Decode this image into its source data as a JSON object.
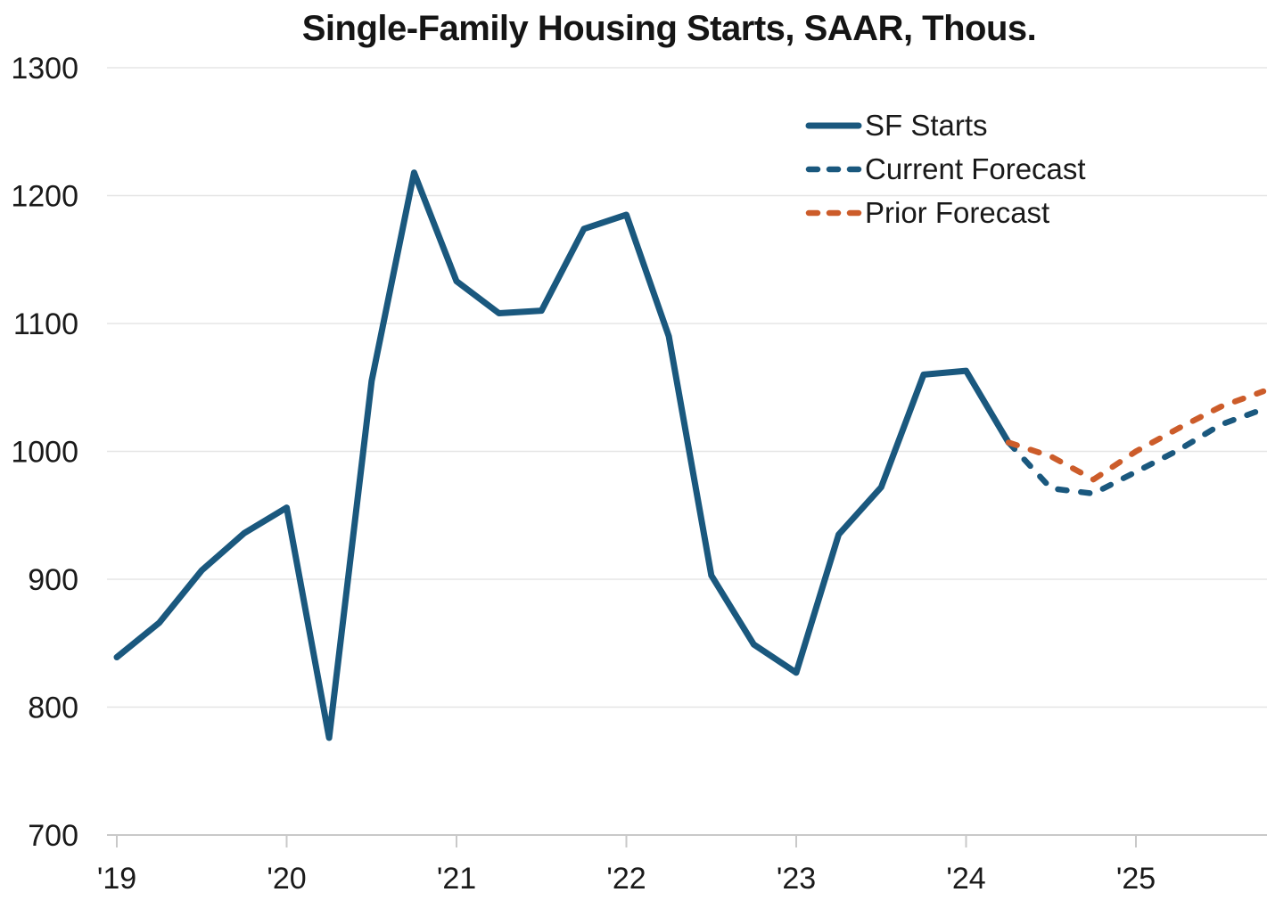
{
  "title": "Single-Family Housing Starts, SAAR, Thous.",
  "legend": {
    "items": [
      {
        "label": "SF Starts",
        "line_style": "solid",
        "color": "#1a587e"
      },
      {
        "label": "Current Forecast",
        "line_style": "dashed",
        "color": "#1a587e"
      },
      {
        "label": "Prior Forecast",
        "line_style": "dashed",
        "color": "#cc5c2a"
      }
    ]
  },
  "chart_data": {
    "type": "line",
    "title": "Single-Family Housing Starts, SAAR, Thous.",
    "grid": "horizontal",
    "legend_position": "upper right inside",
    "x_axis": {
      "tick_positions": [
        2019,
        2020,
        2021,
        2022,
        2023,
        2024,
        2025
      ],
      "tick_labels": [
        "'19",
        "'20",
        "'21",
        "'22",
        "'23",
        "'24",
        "'25"
      ],
      "range": [
        2019.0,
        2025.75
      ]
    },
    "y_axis": {
      "ticks": [
        700,
        800,
        900,
        1000,
        1100,
        1200,
        1300
      ],
      "range": [
        700,
        1300
      ]
    },
    "series": [
      {
        "name": "SF Starts",
        "color": "#1a587e",
        "dash": "solid",
        "x": [
          2019.0,
          2019.25,
          2019.5,
          2019.75,
          2020.0,
          2020.25,
          2020.5,
          2020.75,
          2021.0,
          2021.25,
          2021.5,
          2021.75,
          2022.0,
          2022.25,
          2022.5,
          2022.75,
          2023.0,
          2023.25,
          2023.5,
          2023.75,
          2024.0,
          2024.25
        ],
        "values": [
          839,
          866,
          907,
          936,
          956,
          776,
          1055,
          1218,
          1133,
          1108,
          1110,
          1174,
          1185,
          1090,
          903,
          849,
          827,
          935,
          972,
          1060,
          1063,
          1007
        ]
      },
      {
        "name": "Current Forecast",
        "color": "#1a587e",
        "dash": "dashed",
        "x": [
          2024.25,
          2024.5,
          2024.75,
          2025.0,
          2025.25,
          2025.5,
          2025.75
        ],
        "values": [
          1007,
          971,
          967,
          984,
          1001,
          1021,
          1033
        ]
      },
      {
        "name": "Prior Forecast",
        "color": "#cc5c2a",
        "dash": "dashed",
        "x": [
          2024.25,
          2024.5,
          2024.75,
          2025.0,
          2025.25,
          2025.5,
          2025.75
        ],
        "values": [
          1007,
          996,
          978,
          1000,
          1018,
          1035,
          1047
        ]
      }
    ]
  }
}
